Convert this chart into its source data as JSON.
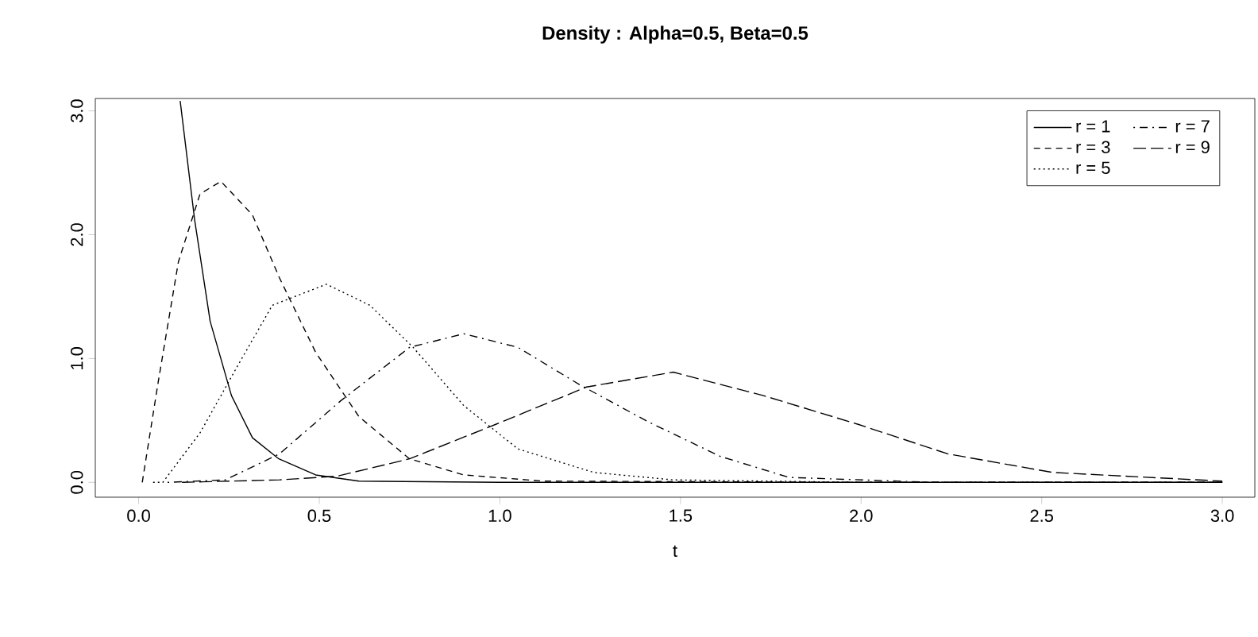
{
  "chart_data": {
    "type": "line",
    "title": "Density : Alpha=0.5, Beta=0.5",
    "xlabel": "t",
    "xlim": [
      -0.12,
      3.09
    ],
    "ylim": [
      -0.12,
      3.1
    ],
    "xticks": [
      {
        "value": 0,
        "label": "0.0"
      },
      {
        "value": 0.5,
        "label": "0.5"
      },
      {
        "value": 1,
        "label": "1.0"
      },
      {
        "value": 1.5,
        "label": "1.5"
      },
      {
        "value": 2,
        "label": "2.0"
      },
      {
        "value": 2.5,
        "label": "2.5"
      },
      {
        "value": 3,
        "label": "3.0"
      }
    ],
    "yticks": [
      {
        "value": 0,
        "label": "0.0"
      },
      {
        "value": 1,
        "label": "1.0"
      },
      {
        "value": 2,
        "label": "2.0"
      },
      {
        "value": 3,
        "label": "3.0"
      }
    ],
    "grid": false,
    "legend": "top right",
    "marker": "none",
    "series": [
      {
        "name": "r = 1",
        "color": "#000000",
        "line_style": "solid",
        "x": [
          0.115,
          0.155,
          0.198,
          0.257,
          0.315,
          0.388,
          0.49,
          0.61,
          1.0,
          2.0,
          3.0
        ],
        "values": [
          3.08,
          2.12,
          1.3,
          0.7,
          0.36,
          0.19,
          0.06,
          0.01,
          0,
          0,
          0
        ]
      },
      {
        "name": "r = 3",
        "color": "#000000",
        "line_style": "dashed",
        "x": [
          0.01,
          0.053,
          0.11,
          0.17,
          0.228,
          0.315,
          0.39,
          0.49,
          0.61,
          0.75,
          0.9,
          1.12,
          2.0,
          3.0
        ],
        "values": [
          0,
          0.79,
          1.78,
          2.33,
          2.43,
          2.16,
          1.65,
          1.05,
          0.53,
          0.19,
          0.06,
          0.01,
          0,
          0
        ]
      },
      {
        "name": "r = 5",
        "color": "#000000",
        "line_style": "dotted",
        "x": [
          0.04,
          0.067,
          0.17,
          0.27,
          0.37,
          0.52,
          0.64,
          0.76,
          0.9,
          1.05,
          1.26,
          1.48,
          2.0,
          3.0
        ],
        "values": [
          0,
          0,
          0.4,
          0.92,
          1.43,
          1.6,
          1.43,
          1.09,
          0.62,
          0.27,
          0.08,
          0.02,
          0,
          0
        ]
      },
      {
        "name": "r = 7",
        "color": "#000000",
        "line_style": "dashdot",
        "x": [
          0.08,
          0.24,
          0.39,
          0.56,
          0.75,
          0.9,
          1.05,
          1.22,
          1.41,
          1.61,
          1.8,
          2.2,
          3.0
        ],
        "values": [
          0,
          0.02,
          0.23,
          0.66,
          1.09,
          1.2,
          1.09,
          0.79,
          0.49,
          0.21,
          0.04,
          0,
          0
        ]
      },
      {
        "name": "r = 9",
        "color": "#000000",
        "line_style": "longdash",
        "x": [
          0.12,
          0.39,
          0.55,
          0.75,
          0.99,
          1.24,
          1.48,
          1.73,
          1.99,
          2.24,
          2.53,
          3.0
        ],
        "values": [
          0,
          0.02,
          0.05,
          0.19,
          0.47,
          0.77,
          0.89,
          0.7,
          0.47,
          0.23,
          0.08,
          0.01
        ]
      }
    ]
  }
}
